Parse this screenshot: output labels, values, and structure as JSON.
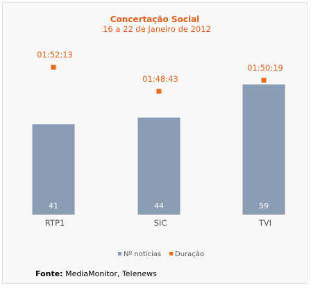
{
  "chart_data": {
    "type": "bar",
    "title": "Concertação Social",
    "subtitle": "16 a 22 de Janeiro de 2012",
    "categories": [
      "RTP1",
      "SIC",
      "TVI"
    ],
    "series": [
      {
        "name": "Nº notícias",
        "type": "bar",
        "values": [
          41,
          44,
          59
        ],
        "color": "#8a9db5"
      },
      {
        "name": "Duração",
        "type": "scatter",
        "values": [
          "01:52:13",
          "01:48:43",
          "01:50:19"
        ],
        "values_seconds": [
          6733,
          6523,
          6619
        ],
        "color": "#f06a12"
      }
    ],
    "legend_position": "bottom",
    "grid": false
  },
  "source": {
    "label": "Fonte:",
    "text": "MediaMonitor, Telenews"
  }
}
